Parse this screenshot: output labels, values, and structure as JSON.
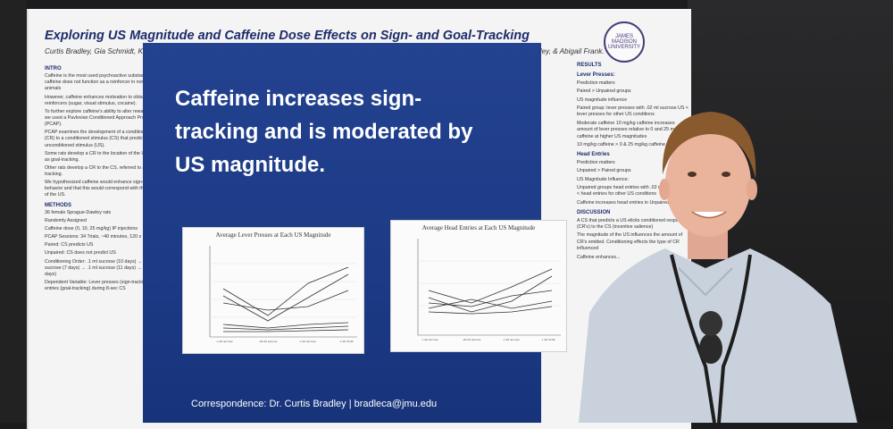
{
  "poster": {
    "title": "Exploring US Magnitude and Caffeine Dose Effects on Sign- and Goal-Tracking",
    "authors": "Curtis Bradley, Gia Schmidt, Kaylin Carsey, Anna Vayo, Gavin Short, Jack Giroux, Jackson Feyer, Holden Williamson, Amarzaya Altankhuyag, Emily Wesley, & Abigail Frank.",
    "seal_text": "JAMES MADISON UNIVERSITY",
    "headline": "Caffeine increases sign-tracking and is moderated by US magnitude.",
    "correspondence": "Correspondence: Dr. Curtis Bradley | bradleca@jmu.edu"
  },
  "left_column": [
    {
      "header": "INTRO"
    },
    {
      "text": "Caffeine is the most used psychoactive substance, yet caffeine does not function as a reinforcer in non-human animals"
    },
    {
      "text": "However, caffeine enhances motivation to obtain other reinforcers (sugar, visual stimulus, cocaine)."
    },
    {
      "text": "To further explore caffeine's ability to alter reward learning, we used a Pavlovian Conditioned Approach Procedure (PCAP)."
    },
    {
      "text": "PCAP examines the development of a conditioned response (CR) to a conditioned stimulus (CS) that predicts an unconditioned stimulus (US)."
    },
    {
      "text": "Some rats develop a CR to the location of the US, referred to as goal-tracking."
    },
    {
      "text": "Other rats develop a CR to the CS, referred to as sign-tracking."
    },
    {
      "text": "We hypothesized caffeine would enhance sign-tracking behavior and that this would correspond with the magnitude of the US."
    },
    {
      "header": "METHODS"
    },
    {
      "text": "36 female Sprague-Dawley rats"
    },
    {
      "text": "Randomly Assigned"
    },
    {
      "text": "Caffeine dose (0, 10, 25 mg/kg) IP injections"
    },
    {
      "text": "PCAP Sessions: 34 Trials, ~40 minutes, 120 s ITI"
    },
    {
      "text": "Paired: CS predicts US"
    },
    {
      "text": "Unpaired: CS does not predict US"
    },
    {
      "text": "Conditioning Order: .1 ml sucrose (10 days) → .02 ml sucrose (7 days) → .1 ml sucrose (11 days) → .1 ml SCM (5 days)"
    },
    {
      "text": "Dependent Variable: Lever presses (sign-tracking) and head entries (goal-tracking) during 8-sec CS"
    }
  ],
  "right_column": [
    {
      "header": "RESULTS"
    },
    {
      "header": "Lever Presses:"
    },
    {
      "text": "Prediction matters"
    },
    {
      "text": "Paired > Unpaired groups"
    },
    {
      "text": "US magnitude influence"
    },
    {
      "text": "Paired group: lever presses with .02 ml sucrose US < lever presses for other US conditions"
    },
    {
      "text": "Moderate caffeine 10 mg/kg caffeine increases amount of lever presses relative to 0 and 25 mg/kg caffeine at higher US magnitudes"
    },
    {
      "text": "10 mg/kg caffeine > 0 & 25 mg/kg caffeine"
    },
    {
      "header": "Head Entries"
    },
    {
      "text": "Prediction matters"
    },
    {
      "text": "Unpaired > Paired groups"
    },
    {
      "text": "US Magnitude Influence:"
    },
    {
      "text": "Unpaired groups head entries with .02 ml sucrose US < head entries for other US conditions"
    },
    {
      "text": "Caffeine increases head entries in Unpaired groups"
    },
    {
      "header": "DISCUSSION"
    },
    {
      "text": "A CS that predicts a US elicits conditioned responses (CR's) to the CS (incentive salience)"
    },
    {
      "text": "The magnitude of the US influences the amount of CR's emitted. Conditioning effects the type of CR influenced"
    },
    {
      "text": "Caffeine enhances..."
    }
  ],
  "charts": [
    {
      "title": "Average Lever Presses at Each US Magnitude",
      "x_labels": [
        ".1 ml sucrose",
        ".02 ml sucrose",
        ".1 ml sucrose",
        ".1 ml SCM"
      ]
    },
    {
      "title": "Average Head Entries at Each US Magnitude",
      "x_labels": [
        ".1 ml sucrose",
        ".02 ml sucrose",
        ".1 ml sucrose",
        ".1 ml SCM"
      ]
    }
  ],
  "colors": {
    "panel_blue": "#1f3c88",
    "title_navy": "#1d2d6b",
    "poster_bg": "#f4f4f4",
    "shirt": "#c9d2dc"
  }
}
